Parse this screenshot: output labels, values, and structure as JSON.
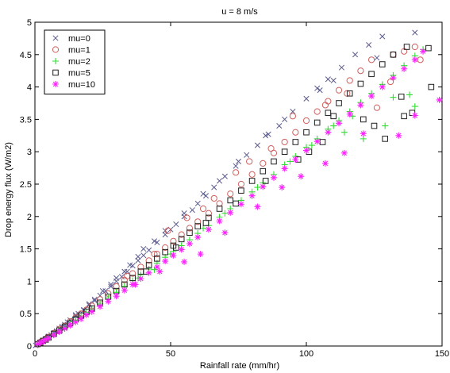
{
  "chart_data": {
    "type": "scatter",
    "title": "u = 8 m/s",
    "xlabel": "Rainfall rate (mm/hr)",
    "ylabel": "Drop energy flux (W/m2)",
    "xlim": [
      0,
      150
    ],
    "ylim": [
      0,
      5
    ],
    "xticks": [
      0,
      50,
      100,
      150
    ],
    "yticks": [
      0,
      0.5,
      1,
      1.5,
      2,
      2.5,
      3,
      3.5,
      4,
      4.5,
      5
    ],
    "grid": false,
    "legend_position": "top-left",
    "series": [
      {
        "name": "mu=0",
        "marker": "x",
        "color": "#5b5b8f",
        "points": [
          [
            0.3,
            0.01
          ],
          [
            1,
            0.03
          ],
          [
            2,
            0.05
          ],
          [
            3,
            0.08
          ],
          [
            4,
            0.11
          ],
          [
            5,
            0.14
          ],
          [
            6,
            0.17
          ],
          [
            7,
            0.2
          ],
          [
            8,
            0.23
          ],
          [
            9,
            0.27
          ],
          [
            10,
            0.3
          ],
          [
            11,
            0.33
          ],
          [
            12,
            0.37
          ],
          [
            13,
            0.4
          ],
          [
            15,
            0.46
          ],
          [
            16,
            0.5
          ],
          [
            18,
            0.56
          ],
          [
            20,
            0.63
          ],
          [
            22,
            0.7
          ],
          [
            24,
            0.78
          ],
          [
            26,
            0.85
          ],
          [
            28,
            0.92
          ],
          [
            30,
            1.0
          ],
          [
            32,
            1.07
          ],
          [
            34,
            1.15
          ],
          [
            36,
            1.24
          ],
          [
            38,
            1.32
          ],
          [
            40,
            1.4
          ],
          [
            42,
            1.48
          ],
          [
            45,
            1.6
          ],
          [
            48,
            1.72
          ],
          [
            50,
            1.8
          ],
          [
            52,
            1.88
          ],
          [
            55,
            2.0
          ],
          [
            58,
            2.1
          ],
          [
            60,
            2.2
          ],
          [
            63,
            2.32
          ],
          [
            66,
            2.45
          ],
          [
            70,
            2.62
          ],
          [
            74,
            2.78
          ],
          [
            78,
            2.95
          ],
          [
            82,
            3.1
          ],
          [
            86,
            3.27
          ],
          [
            90,
            3.4
          ],
          [
            95,
            3.62
          ],
          [
            100,
            3.82
          ],
          [
            104,
            3.98
          ],
          [
            108,
            4.12
          ],
          [
            113,
            4.3
          ],
          [
            118,
            4.5
          ],
          [
            123,
            4.65
          ],
          [
            128,
            4.78
          ],
          [
            140,
            4.84
          ],
          [
            10,
            0.28
          ],
          [
            15,
            0.48
          ],
          [
            20,
            0.65
          ],
          [
            25,
            0.85
          ],
          [
            30,
            1.05
          ],
          [
            35,
            1.25
          ],
          [
            40,
            1.5
          ],
          [
            5,
            0.15
          ],
          [
            8,
            0.22
          ],
          [
            12,
            0.33
          ],
          [
            18,
            0.55
          ],
          [
            22,
            0.72
          ],
          [
            28,
            0.95
          ],
          [
            33,
            1.15
          ],
          [
            38,
            1.38
          ],
          [
            44,
            1.62
          ],
          [
            48,
            1.78
          ],
          [
            55,
            2.05
          ],
          [
            62,
            2.35
          ],
          [
            68,
            2.55
          ],
          [
            75,
            2.85
          ],
          [
            85,
            3.25
          ],
          [
            92,
            3.5
          ],
          [
            105,
            3.95
          ],
          [
            110,
            4.1
          ],
          [
            126,
            4.45
          ]
        ]
      },
      {
        "name": "mu=1",
        "marker": "circle",
        "color": "#d0605e",
        "points": [
          [
            1,
            0.03
          ],
          [
            2,
            0.06
          ],
          [
            3,
            0.08
          ],
          [
            4,
            0.11
          ],
          [
            5,
            0.14
          ],
          [
            7,
            0.2
          ],
          [
            9,
            0.26
          ],
          [
            11,
            0.31
          ],
          [
            13,
            0.38
          ],
          [
            15,
            0.44
          ],
          [
            17,
            0.5
          ],
          [
            19,
            0.56
          ],
          [
            21,
            0.62
          ],
          [
            24,
            0.72
          ],
          [
            27,
            0.81
          ],
          [
            30,
            0.92
          ],
          [
            33,
            1.02
          ],
          [
            36,
            1.12
          ],
          [
            39,
            1.22
          ],
          [
            42,
            1.32
          ],
          [
            45,
            1.42
          ],
          [
            48,
            1.52
          ],
          [
            51,
            1.62
          ],
          [
            54,
            1.72
          ],
          [
            57,
            1.82
          ],
          [
            60,
            1.92
          ],
          [
            64,
            2.05
          ],
          [
            68,
            2.2
          ],
          [
            72,
            2.35
          ],
          [
            76,
            2.5
          ],
          [
            80,
            2.65
          ],
          [
            84,
            2.82
          ],
          [
            88,
            2.98
          ],
          [
            92,
            3.15
          ],
          [
            96,
            3.3
          ],
          [
            100,
            3.48
          ],
          [
            104,
            3.62
          ],
          [
            108,
            3.78
          ],
          [
            112,
            3.95
          ],
          [
            116,
            4.1
          ],
          [
            120,
            4.25
          ],
          [
            124,
            4.42
          ],
          [
            132,
            4.5
          ],
          [
            136,
            4.55
          ],
          [
            140,
            4.62
          ],
          [
            142,
            4.42
          ],
          [
            126,
            3.68
          ],
          [
            131,
            4.08
          ],
          [
            34,
            1.08
          ],
          [
            44,
            1.42
          ],
          [
            49,
            1.78
          ],
          [
            56,
            1.98
          ],
          [
            62,
            2.12
          ],
          [
            66,
            2.28
          ],
          [
            74,
            2.68
          ],
          [
            79,
            2.85
          ],
          [
            87,
            3.05
          ],
          [
            95,
            3.55
          ],
          [
            107,
            3.72
          ],
          [
            115,
            3.9
          ]
        ]
      },
      {
        "name": "mu=2",
        "marker": "plus",
        "color": "#30e030",
        "points": [
          [
            1,
            0.03
          ],
          [
            2,
            0.05
          ],
          [
            3,
            0.08
          ],
          [
            4,
            0.1
          ],
          [
            5,
            0.13
          ],
          [
            7,
            0.18
          ],
          [
            9,
            0.24
          ],
          [
            11,
            0.29
          ],
          [
            13,
            0.35
          ],
          [
            15,
            0.4
          ],
          [
            17,
            0.45
          ],
          [
            19,
            0.52
          ],
          [
            21,
            0.57
          ],
          [
            24,
            0.65
          ],
          [
            27,
            0.74
          ],
          [
            30,
            0.83
          ],
          [
            33,
            0.92
          ],
          [
            36,
            1.01
          ],
          [
            39,
            1.1
          ],
          [
            42,
            1.19
          ],
          [
            45,
            1.28
          ],
          [
            48,
            1.37
          ],
          [
            51,
            1.46
          ],
          [
            54,
            1.55
          ],
          [
            57,
            1.64
          ],
          [
            60,
            1.74
          ],
          [
            64,
            1.86
          ],
          [
            68,
            1.99
          ],
          [
            72,
            2.12
          ],
          [
            76,
            2.25
          ],
          [
            80,
            2.38
          ],
          [
            84,
            2.52
          ],
          [
            88,
            2.65
          ],
          [
            92,
            2.8
          ],
          [
            96,
            2.93
          ],
          [
            100,
            3.07
          ],
          [
            104,
            3.2
          ],
          [
            108,
            3.35
          ],
          [
            112,
            3.48
          ],
          [
            116,
            3.62
          ],
          [
            120,
            3.76
          ],
          [
            124,
            3.9
          ],
          [
            128,
            4.04
          ],
          [
            132,
            4.18
          ],
          [
            136,
            4.33
          ],
          [
            140,
            4.48
          ],
          [
            143,
            4.58
          ],
          [
            132,
            3.84
          ],
          [
            138,
            3.88
          ],
          [
            140,
            3.7
          ],
          [
            110,
            3.4
          ],
          [
            114,
            3.3
          ],
          [
            121,
            3.2
          ],
          [
            129,
            3.4
          ],
          [
            50,
            1.42
          ],
          [
            62,
            1.82
          ],
          [
            70,
            2.05
          ],
          [
            82,
            2.45
          ],
          [
            94,
            2.85
          ],
          [
            102,
            3.1
          ],
          [
            117,
            3.55
          ],
          [
            44,
            1.18
          ],
          [
            38,
            1.05
          ]
        ]
      },
      {
        "name": "mu=5",
        "marker": "square",
        "color": "#202020",
        "points": [
          [
            1,
            0.03
          ],
          [
            2,
            0.05
          ],
          [
            3,
            0.08
          ],
          [
            4,
            0.1
          ],
          [
            5,
            0.13
          ],
          [
            7,
            0.19
          ],
          [
            9,
            0.24
          ],
          [
            11,
            0.3
          ],
          [
            13,
            0.35
          ],
          [
            15,
            0.41
          ],
          [
            17,
            0.47
          ],
          [
            19,
            0.53
          ],
          [
            21,
            0.58
          ],
          [
            24,
            0.67
          ],
          [
            27,
            0.76
          ],
          [
            30,
            0.85
          ],
          [
            33,
            0.95
          ],
          [
            36,
            1.05
          ],
          [
            39,
            1.15
          ],
          [
            42,
            1.25
          ],
          [
            45,
            1.35
          ],
          [
            48,
            1.45
          ],
          [
            51,
            1.55
          ],
          [
            54,
            1.65
          ],
          [
            57,
            1.75
          ],
          [
            60,
            1.85
          ],
          [
            64,
            1.98
          ],
          [
            68,
            2.12
          ],
          [
            72,
            2.25
          ],
          [
            76,
            2.4
          ],
          [
            80,
            2.55
          ],
          [
            84,
            2.7
          ],
          [
            88,
            2.85
          ],
          [
            92,
            3.0
          ],
          [
            96,
            3.15
          ],
          [
            100,
            3.3
          ],
          [
            104,
            3.45
          ],
          [
            108,
            3.6
          ],
          [
            112,
            3.75
          ],
          [
            116,
            3.9
          ],
          [
            120,
            4.05
          ],
          [
            124,
            4.2
          ],
          [
            128,
            4.35
          ],
          [
            132,
            4.5
          ],
          [
            137,
            4.62
          ],
          [
            145,
            4.6
          ],
          [
            136,
            3.55
          ],
          [
            139,
            3.6
          ],
          [
            129,
            3.2
          ],
          [
            125,
            3.4
          ],
          [
            146,
            4.0
          ],
          [
            101,
            3.0
          ],
          [
            106,
            3.15
          ],
          [
            121,
            3.5
          ],
          [
            135,
            3.85
          ],
          [
            41,
            1.15
          ],
          [
            52,
            1.52
          ],
          [
            63,
            1.9
          ],
          [
            74,
            2.2
          ],
          [
            85,
            2.55
          ],
          [
            97,
            2.88
          ],
          [
            110,
            3.55
          ]
        ]
      },
      {
        "name": "mu=10",
        "marker": "star",
        "color": "#ff20ff",
        "points": [
          [
            1,
            0.03
          ],
          [
            2,
            0.05
          ],
          [
            3,
            0.07
          ],
          [
            4,
            0.1
          ],
          [
            5,
            0.12
          ],
          [
            7,
            0.17
          ],
          [
            9,
            0.22
          ],
          [
            11,
            0.27
          ],
          [
            13,
            0.32
          ],
          [
            15,
            0.37
          ],
          [
            17,
            0.42
          ],
          [
            19,
            0.48
          ],
          [
            21,
            0.53
          ],
          [
            24,
            0.61
          ],
          [
            27,
            0.69
          ],
          [
            30,
            0.77
          ],
          [
            33,
            0.86
          ],
          [
            36,
            0.95
          ],
          [
            39,
            1.04
          ],
          [
            42,
            1.13
          ],
          [
            45,
            1.22
          ],
          [
            48,
            1.31
          ],
          [
            51,
            1.4
          ],
          [
            54,
            1.49
          ],
          [
            57,
            1.58
          ],
          [
            60,
            1.68
          ],
          [
            64,
            1.8
          ],
          [
            68,
            1.93
          ],
          [
            72,
            2.06
          ],
          [
            76,
            2.19
          ],
          [
            80,
            2.32
          ],
          [
            84,
            2.46
          ],
          [
            88,
            2.6
          ],
          [
            92,
            2.74
          ],
          [
            96,
            2.88
          ],
          [
            100,
            3.02
          ],
          [
            104,
            3.16
          ],
          [
            108,
            3.3
          ],
          [
            112,
            3.44
          ],
          [
            116,
            3.58
          ],
          [
            120,
            3.72
          ],
          [
            124,
            3.86
          ],
          [
            128,
            4.0
          ],
          [
            132,
            4.14
          ],
          [
            136,
            4.28
          ],
          [
            140,
            4.42
          ],
          [
            143,
            4.55
          ],
          [
            149,
            3.8
          ],
          [
            140,
            3.56
          ],
          [
            134,
            3.25
          ],
          [
            121,
            3.28
          ],
          [
            114,
            2.98
          ],
          [
            107,
            2.82
          ],
          [
            98,
            2.62
          ],
          [
            91,
            2.45
          ],
          [
            61,
            1.42
          ],
          [
            70,
            1.75
          ],
          [
            82,
            2.15
          ],
          [
            55,
            1.3
          ],
          [
            46,
            1.15
          ],
          [
            37,
            0.95
          ]
        ]
      }
    ]
  }
}
